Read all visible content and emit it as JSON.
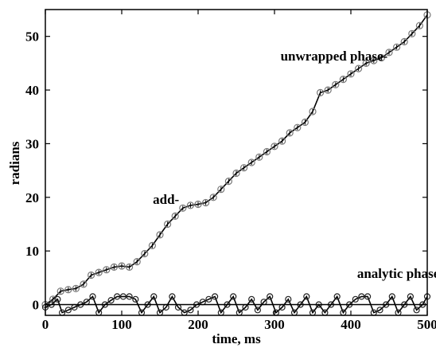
{
  "chart_data": {
    "type": "line",
    "xlabel": "time, ms",
    "ylabel": "radians",
    "xlim": [
      0,
      500
    ],
    "ylim": [
      -2,
      55
    ],
    "xticks": [
      0,
      100,
      200,
      300,
      400,
      500
    ],
    "yticks": [
      0,
      10,
      20,
      30,
      40,
      50
    ],
    "grid": false,
    "annotations": [
      {
        "text": "unwrapped phase-",
        "x": 378,
        "y": 45.5
      },
      {
        "text": "add-",
        "x": 158,
        "y": 18.8
      },
      {
        "text": "analytic phase-",
        "x": 465,
        "y": 5
      }
    ],
    "series": [
      {
        "style": "line-with-circle-markers",
        "color": "#000000",
        "x": [
          0,
          10,
          20,
          30,
          40,
          50,
          60,
          70,
          80,
          90,
          100,
          110,
          120,
          130,
          140,
          150,
          160,
          170,
          180,
          190,
          200,
          210,
          220,
          230,
          240,
          250,
          260,
          270,
          280,
          290,
          300,
          310,
          320,
          330,
          340,
          350,
          360,
          370,
          380,
          390,
          400,
          410,
          420,
          430,
          440,
          450,
          460,
          470,
          480,
          490,
          500
        ],
        "values": [
          0,
          1.0,
          2.5,
          2.8,
          3.0,
          3.8,
          5.5,
          6.0,
          6.5,
          7.0,
          7.2,
          7.0,
          8.0,
          9.5,
          11.0,
          13.0,
          15.0,
          16.5,
          18.0,
          18.5,
          18.7,
          19.0,
          20.0,
          21.5,
          23.0,
          24.5,
          25.5,
          26.5,
          27.5,
          28.5,
          29.5,
          30.5,
          32.0,
          33.0,
          34.0,
          36.0,
          39.5,
          40.0,
          41.0,
          42.0,
          43.0,
          44.0,
          45.0,
          45.5,
          46.0,
          47.0,
          48.0,
          49.0,
          50.5,
          52.0,
          54.0
        ]
      },
      {
        "style": "zigzag-with-circle-markers",
        "color": "#000000",
        "x": [
          0,
          8,
          16,
          22,
          30,
          38,
          46,
          54,
          62,
          70,
          78,
          86,
          94,
          102,
          110,
          118,
          126,
          134,
          142,
          150,
          158,
          166,
          174,
          182,
          190,
          198,
          206,
          214,
          222,
          230,
          238,
          246,
          254,
          262,
          270,
          278,
          286,
          294,
          302,
          310,
          318,
          326,
          334,
          342,
          350,
          358,
          366,
          374,
          382,
          390,
          398,
          406,
          414,
          422,
          430,
          438,
          446,
          454,
          462,
          470,
          478,
          486,
          494,
          500
        ],
        "values": [
          -0.5,
          0,
          1.0,
          -1.5,
          -1.0,
          -0.5,
          0,
          0.5,
          1.5,
          -1.5,
          0,
          0.8,
          1.5,
          1.5,
          1.5,
          1.0,
          -1.5,
          0,
          1.5,
          -1.5,
          -0.5,
          1.5,
          -0.5,
          -1.5,
          -1.0,
          0,
          0.5,
          1.0,
          1.5,
          -1.5,
          0,
          1.5,
          -1.5,
          -0.5,
          1.0,
          -1.0,
          0.5,
          1.5,
          -1.5,
          -0.5,
          1.0,
          -1.5,
          0,
          1.5,
          -1.5,
          0,
          -1.5,
          0,
          1.5,
          -1.5,
          0,
          1.0,
          1.5,
          1.5,
          -1.5,
          -1.0,
          0,
          1.5,
          -1.5,
          0,
          1.5,
          -1.0,
          0,
          1.5
        ]
      },
      {
        "style": "flat-line",
        "color": "#000000",
        "x": [
          0,
          500
        ],
        "values": [
          0,
          0
        ]
      }
    ]
  }
}
